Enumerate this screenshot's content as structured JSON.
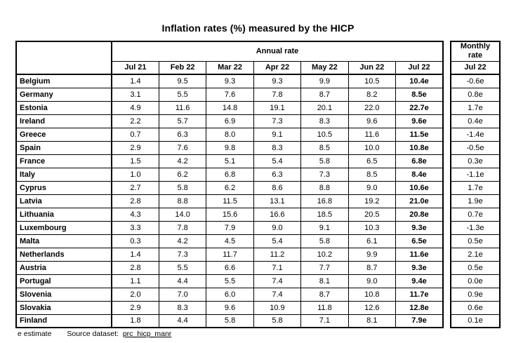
{
  "title": "Inflation rates (%) measured by the HICP",
  "annual_table": {
    "group_header": "Annual rate",
    "columns": [
      "Jul 21",
      "Feb 22",
      "Mar 22",
      "Apr 22",
      "May 22",
      "Jun 22",
      "Jul 22"
    ],
    "rows": [
      {
        "country": "Belgium",
        "values": [
          "1.4",
          "9.5",
          "9.3",
          "9.3",
          "9.9",
          "10.5",
          "10.4e"
        ]
      },
      {
        "country": "Germany",
        "values": [
          "3.1",
          "5.5",
          "7.6",
          "7.8",
          "8.7",
          "8.2",
          "8.5e"
        ]
      },
      {
        "country": "Estonia",
        "values": [
          "4.9",
          "11.6",
          "14.8",
          "19.1",
          "20.1",
          "22.0",
          "22.7e"
        ]
      },
      {
        "country": "Ireland",
        "values": [
          "2.2",
          "5.7",
          "6.9",
          "7.3",
          "8.3",
          "9.6",
          "9.6e"
        ]
      },
      {
        "country": "Greece",
        "values": [
          "0.7",
          "6.3",
          "8.0",
          "9.1",
          "10.5",
          "11.6",
          "11.5e"
        ]
      },
      {
        "country": "Spain",
        "values": [
          "2.9",
          "7.6",
          "9.8",
          "8.3",
          "8.5",
          "10.0",
          "10.8e"
        ]
      },
      {
        "country": "France",
        "values": [
          "1.5",
          "4.2",
          "5.1",
          "5.4",
          "5.8",
          "6.5",
          "6.8e"
        ]
      },
      {
        "country": "Italy",
        "values": [
          "1.0",
          "6.2",
          "6.8",
          "6.3",
          "7.3",
          "8.5",
          "8.4e"
        ]
      },
      {
        "country": "Cyprus",
        "values": [
          "2.7",
          "5.8",
          "6.2",
          "8.6",
          "8.8",
          "9.0",
          "10.6e"
        ]
      },
      {
        "country": "Latvia",
        "values": [
          "2.8",
          "8.8",
          "11.5",
          "13.1",
          "16.8",
          "19.2",
          "21.0e"
        ]
      },
      {
        "country": "Lithuania",
        "values": [
          "4.3",
          "14.0",
          "15.6",
          "16.6",
          "18.5",
          "20.5",
          "20.8e"
        ]
      },
      {
        "country": "Luxembourg",
        "values": [
          "3.3",
          "7.8",
          "7.9",
          "9.0",
          "9.1",
          "10.3",
          "9.3e"
        ]
      },
      {
        "country": "Malta",
        "values": [
          "0.3",
          "4.2",
          "4.5",
          "5.4",
          "5.8",
          "6.1",
          "6.5e"
        ]
      },
      {
        "country": "Netherlands",
        "values": [
          "1.4",
          "7.3",
          "11.7",
          "11.2",
          "10.2",
          "9.9",
          "11.6e"
        ]
      },
      {
        "country": "Austria",
        "values": [
          "2.8",
          "5.5",
          "6.6",
          "7.1",
          "7.7",
          "8.7",
          "9.3e"
        ]
      },
      {
        "country": "Portugal",
        "values": [
          "1.1",
          "4.4",
          "5.5",
          "7.4",
          "8.1",
          "9.0",
          "9.4e"
        ]
      },
      {
        "country": "Slovenia",
        "values": [
          "2.0",
          "7.0",
          "6.0",
          "7.4",
          "8.7",
          "10.8",
          "11.7e"
        ]
      },
      {
        "country": "Slovakia",
        "values": [
          "2.9",
          "8.3",
          "9.6",
          "10.9",
          "11.8",
          "12.6",
          "12.8e"
        ]
      },
      {
        "country": "Finland",
        "values": [
          "1.8",
          "4.4",
          "5.8",
          "5.8",
          "7.1",
          "8.1",
          "7.9e"
        ]
      }
    ]
  },
  "monthly_table": {
    "group_header": "Monthly rate",
    "column": "Jul 22",
    "values": [
      "-0.6e",
      "0.8e",
      "1.7e",
      "0.4e",
      "-1.4e",
      "-0.5e",
      "0.3e",
      "-1.1e",
      "1.7e",
      "1.9e",
      "0.7e",
      "-1.3e",
      "0.5e",
      "2.1e",
      "0.5e",
      "0.0e",
      "0.9e",
      "0.6e",
      "0.1e"
    ]
  },
  "footer": {
    "note": "e estimate",
    "source_label": "Source dataset:",
    "source_link": "prc_hicp_manr"
  },
  "colors": {
    "background": "#ffffff",
    "text": "#000000",
    "border": "#000000"
  }
}
